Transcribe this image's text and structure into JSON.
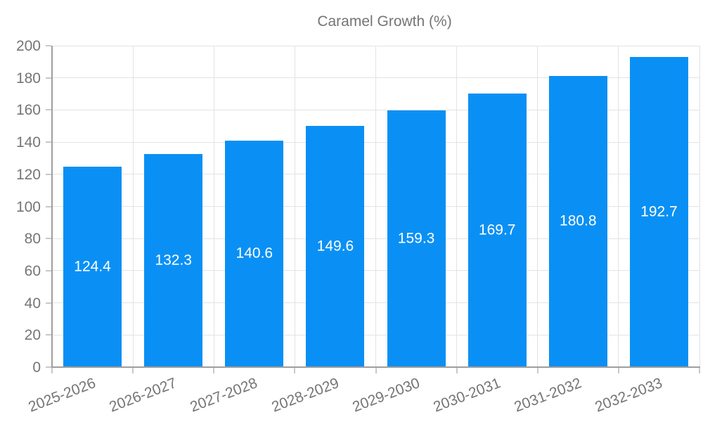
{
  "chart_data": {
    "type": "bar",
    "title": "",
    "legend_position": "top-center",
    "grid": "on",
    "categories": [
      "2025-2026",
      "2026-2027",
      "2027-2028",
      "2028-2029",
      "2029-2030",
      "2030-2031",
      "2031-2032",
      "2032-2033"
    ],
    "series": [
      {
        "name": "Caramel Growth (%)",
        "values": [
          124.4,
          132.3,
          140.6,
          149.6,
          159.3,
          169.7,
          180.8,
          192.7
        ]
      }
    ],
    "value_labels": [
      "124.4",
      "132.3",
      "140.6",
      "149.6",
      "159.3",
      "169.7",
      "180.8",
      "192.7"
    ],
    "xlabel": "",
    "ylabel": "",
    "ylim": [
      0,
      200
    ],
    "ytick_step": 20,
    "ytick_labels": [
      "0",
      "20",
      "40",
      "60",
      "80",
      "100",
      "120",
      "140",
      "160",
      "180",
      "200"
    ],
    "colors": {
      "bar": "#0a90f4",
      "value_label": "#ffffff",
      "axis_line": "#9e9e9e",
      "gridline": "#e3e3e3",
      "tick_mark": "#c9c9c9",
      "tick_label": "#757575",
      "legend_label": "#757575",
      "background": "#ffffff"
    }
  }
}
